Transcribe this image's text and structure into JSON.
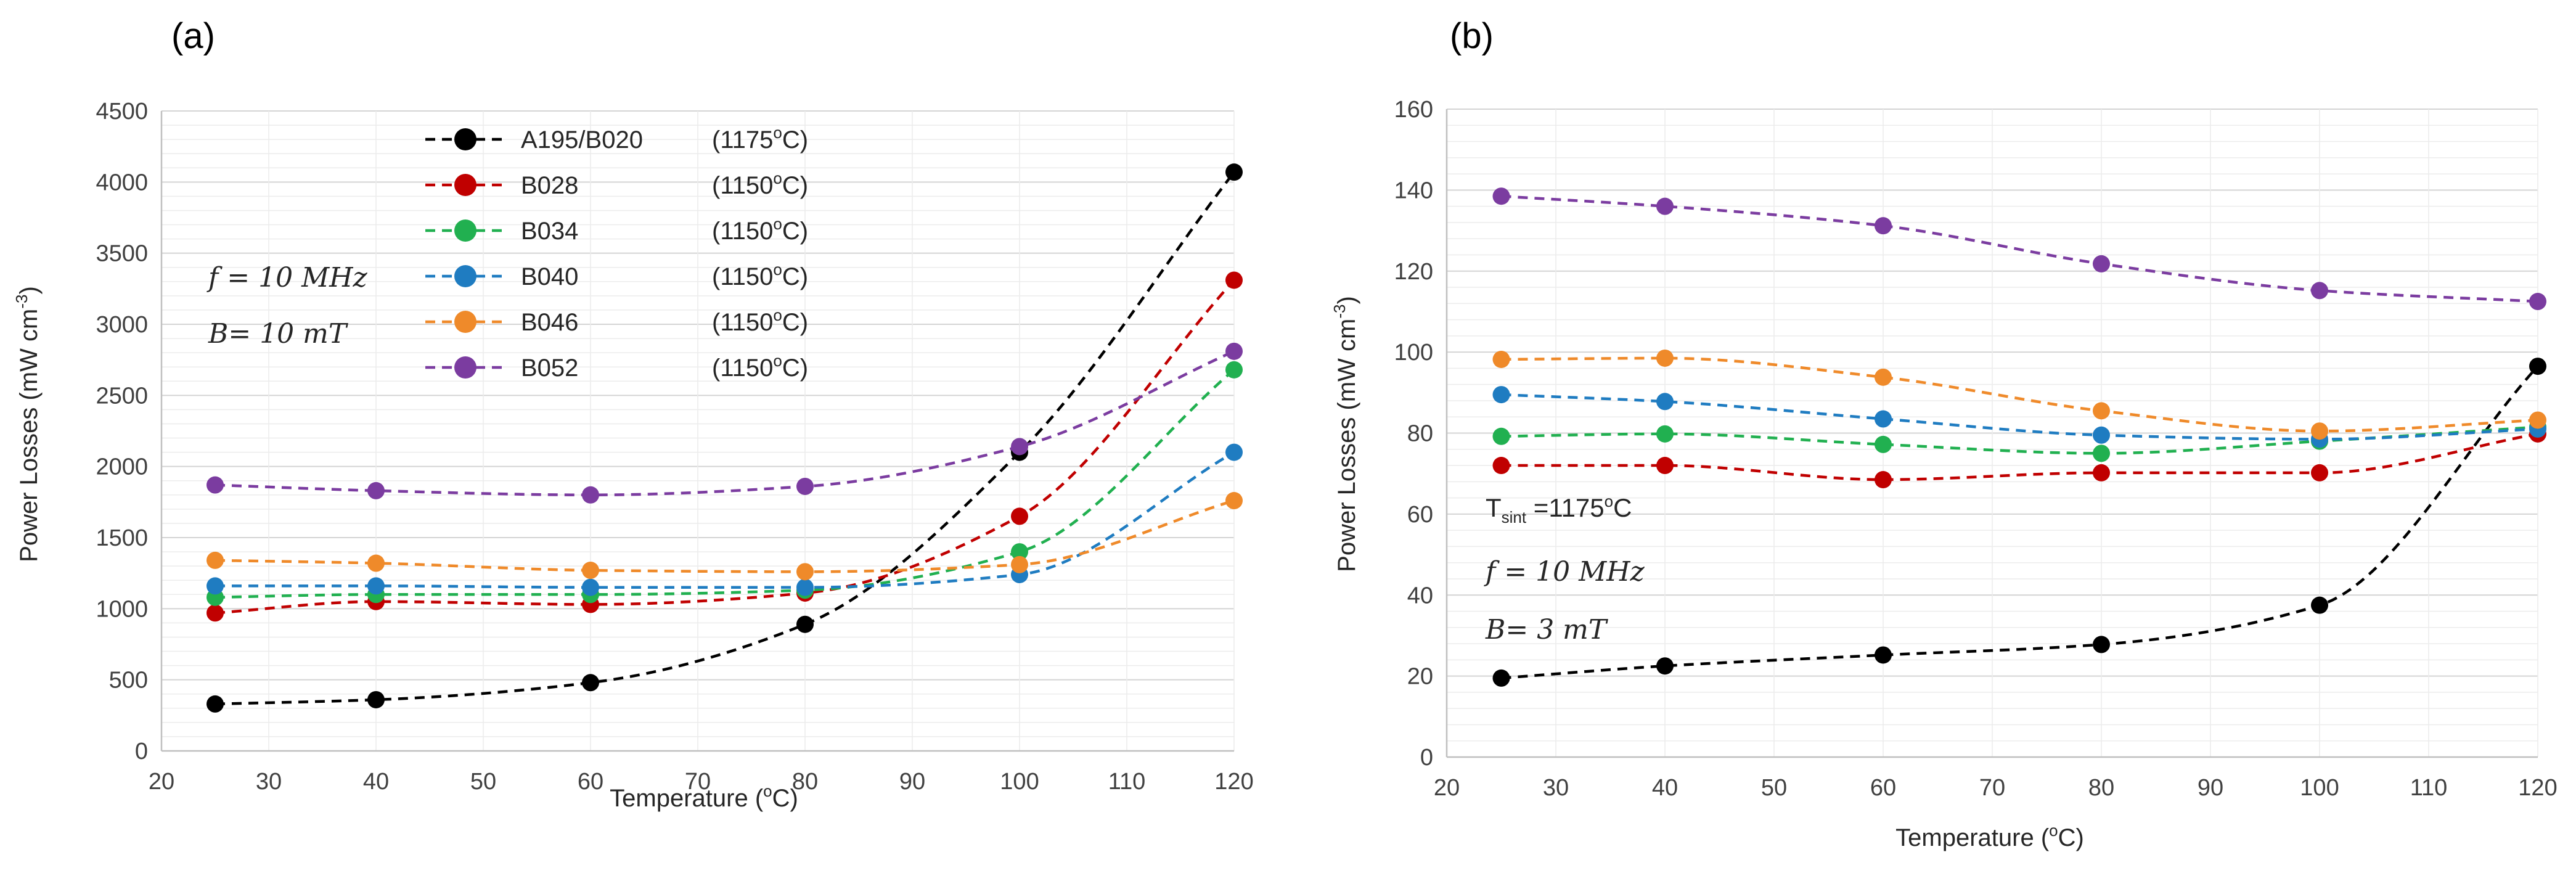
{
  "panels": [
    {
      "label": "(a)",
      "notes": [
        "𝑓 = 10 𝑀𝐻𝑧",
        "B= 10 𝑚𝑇"
      ]
    },
    {
      "label": "(b)",
      "notes": [
        "T",
        "sint",
        " =1175",
        "o",
        "C",
        "𝑓 = 10 𝑀𝐻𝑧",
        "B= 3 𝑚𝑇"
      ]
    }
  ],
  "chart_data": [
    {
      "type": "line",
      "panel": "(a)",
      "xlabel": "Temperature (",
      "xlabel_sup": "o",
      "xlabel_end": "C)",
      "ylabel": "Power Losses (mW cm",
      "ylabel_sup": "-3",
      "ylabel_end": ")",
      "x_ticks": [
        "20",
        "30",
        "40",
        "50",
        "60",
        "70",
        "80",
        "90",
        "100",
        "110",
        "120"
      ],
      "y_ticks": [
        "0",
        "500",
        "1000",
        "1500",
        "2000",
        "2500",
        "3000",
        "3500",
        "4000",
        "4500"
      ],
      "xlim": [
        20,
        120
      ],
      "ylim": [
        0,
        4500
      ],
      "grid": true,
      "legend_position": "top-center",
      "x": [
        25,
        40,
        60,
        80,
        100,
        120
      ],
      "series": [
        {
          "name": "A195/B020",
          "temp": "(1175",
          "temp_sup": "o",
          "temp_end": "C)",
          "color": "#000000",
          "values": [
            330,
            360,
            480,
            890,
            2100,
            4070
          ]
        },
        {
          "name": "B028",
          "temp": "(1150",
          "temp_sup": "o",
          "temp_end": "C)",
          "color": "#c00000",
          "values": [
            970,
            1050,
            1030,
            1110,
            1650,
            3310
          ]
        },
        {
          "name": "B034",
          "temp": "(1150",
          "temp_sup": "o",
          "temp_end": "C)",
          "color": "#21b050",
          "values": [
            1080,
            1100,
            1100,
            1130,
            1400,
            2680
          ]
        },
        {
          "name": "B040",
          "temp": "(1150",
          "temp_sup": "o",
          "temp_end": "C)",
          "color": "#1f7cc1",
          "values": [
            1160,
            1160,
            1150,
            1150,
            1240,
            2100
          ]
        },
        {
          "name": "B046",
          "temp": "(1150",
          "temp_sup": "o",
          "temp_end": "C)",
          "color": "#ef8a2a",
          "values": [
            1340,
            1320,
            1270,
            1260,
            1310,
            1760
          ]
        },
        {
          "name": "B052",
          "temp": "(1150",
          "temp_sup": "o",
          "temp_end": "C)",
          "color": "#7b3ca0",
          "values": [
            1870,
            1830,
            1800,
            1860,
            2140,
            2810
          ]
        }
      ]
    },
    {
      "type": "line",
      "panel": "(b)",
      "xlabel": "Temperature (",
      "xlabel_sup": "o",
      "xlabel_end": "C)",
      "ylabel": "Power Losses (mW cm",
      "ylabel_sup": "-3",
      "ylabel_end": ")",
      "x_ticks": [
        "20",
        "30",
        "40",
        "50",
        "60",
        "70",
        "80",
        "90",
        "100",
        "110",
        "120"
      ],
      "y_ticks": [
        "0",
        "20",
        "40",
        "60",
        "80",
        "100",
        "120",
        "140",
        "160"
      ],
      "xlim": [
        20,
        120
      ],
      "ylim": [
        0,
        160
      ],
      "grid": true,
      "legend_position": "none",
      "x": [
        25,
        40,
        60,
        80,
        100,
        120
      ],
      "series": [
        {
          "name": "A195/B020",
          "color": "#000000",
          "values": [
            19.5,
            22.5,
            25.2,
            27.8,
            37.5,
            96.5
          ]
        },
        {
          "name": "B028",
          "color": "#c00000",
          "values": [
            72,
            72,
            68.5,
            70.2,
            70.2,
            79.8
          ]
        },
        {
          "name": "B034",
          "color": "#21b050",
          "values": [
            79.2,
            79.8,
            77.2,
            75,
            78,
            81.5
          ]
        },
        {
          "name": "B040",
          "color": "#1f7cc1",
          "values": [
            89.5,
            87.8,
            83.5,
            79.5,
            78.5,
            81
          ]
        },
        {
          "name": "B046",
          "color": "#ef8a2a",
          "values": [
            98.2,
            98.5,
            93.8,
            85.5,
            80.5,
            83.2
          ]
        },
        {
          "name": "B052",
          "color": "#7b3ca0",
          "values": [
            138.5,
            136,
            131.2,
            121.8,
            115.2,
            112.5
          ]
        }
      ]
    }
  ]
}
